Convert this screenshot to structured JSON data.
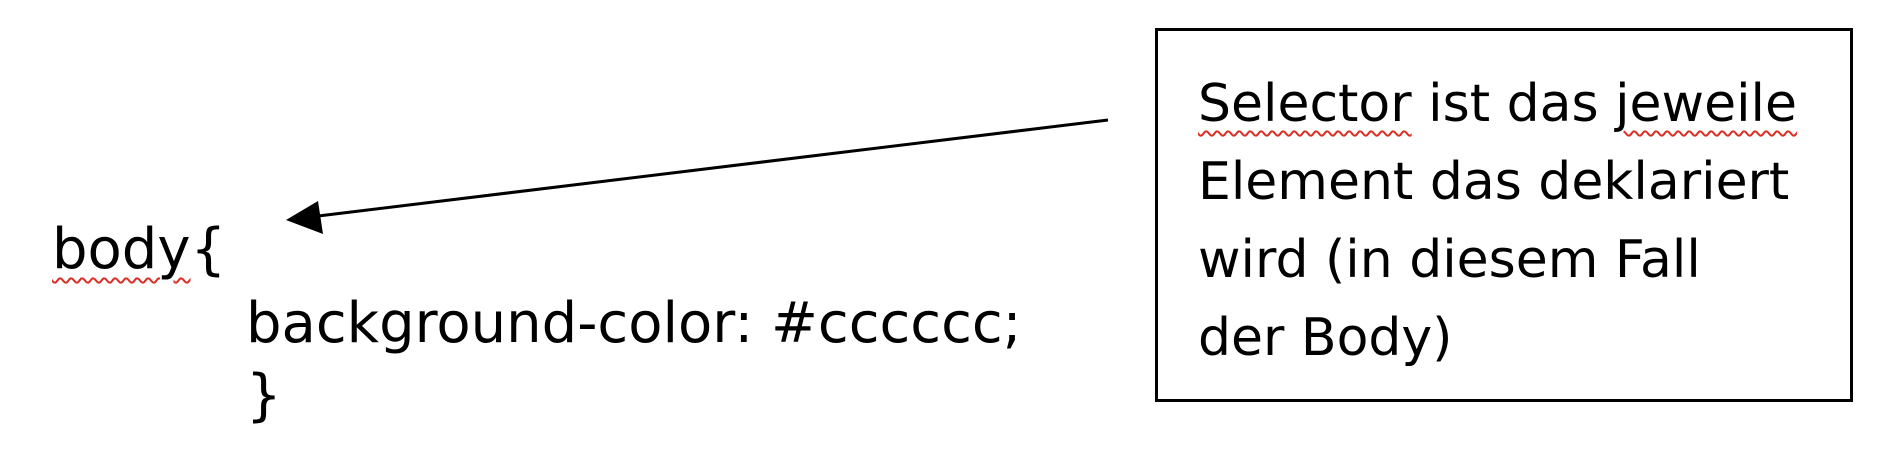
{
  "code": {
    "selector_word": "body",
    "open_brace": "{",
    "declaration": "background-color: #cccccc;",
    "close_brace": "}"
  },
  "callout": {
    "line1_part1": "Selector",
    "line1_part2": " ist das ",
    "line1_part3": "jeweile",
    "line2": "Element das deklariert",
    "line3": "wird (in diesem Fall",
    "line4": "der Body)"
  },
  "colors": {
    "text": "#000000",
    "spellcheck_underline": "#d93025",
    "background": "#ffffff"
  }
}
